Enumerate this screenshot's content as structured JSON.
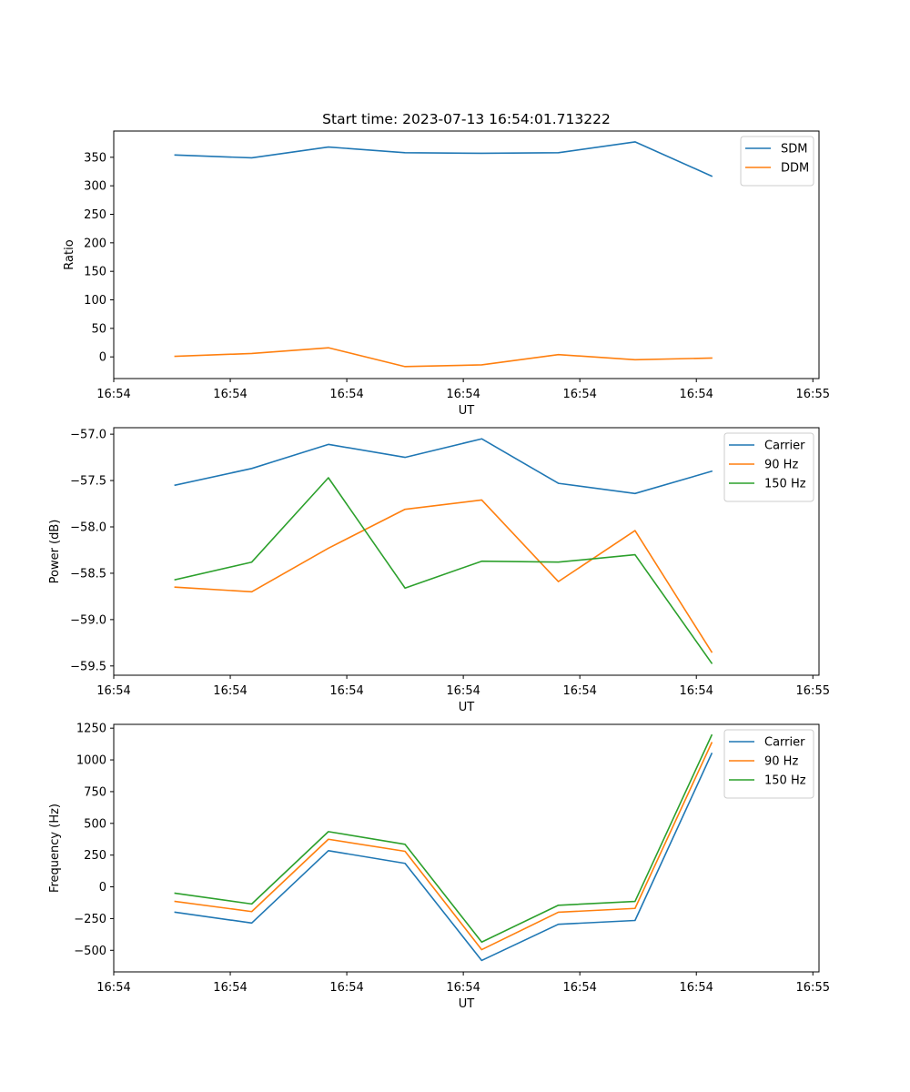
{
  "figure_title": "Start time: 2023-07-13 16:54:01.713222",
  "colors": {
    "c0": "#1f77b4",
    "c1": "#ff7f0e",
    "c2": "#2ca02c"
  },
  "chart_data": [
    {
      "type": "line",
      "title": "Start time: 2023-07-13 16:54:01.713222",
      "xlabel": "UT",
      "ylabel": "Ratio",
      "x": [
        1,
        2,
        3,
        4,
        5,
        6,
        7,
        8
      ],
      "xlim": [
        0.2,
        9.4
      ],
      "xticks": [
        0.2,
        1.72,
        3.24,
        4.76,
        6.28,
        7.8,
        9.32
      ],
      "xticklabels": [
        "16:54",
        "16:54",
        "16:54",
        "16:54",
        "16:54",
        "16:54",
        "16:55"
      ],
      "ylim": [
        -38,
        396
      ],
      "yticks": [
        0,
        50,
        100,
        150,
        200,
        250,
        300,
        350
      ],
      "yticklabels": [
        "0",
        "50",
        "100",
        "150",
        "200",
        "250",
        "300",
        "350"
      ],
      "legend_loc": "upper right",
      "series": [
        {
          "name": "SDM",
          "color": "#1f77b4",
          "values": [
            354,
            349,
            368,
            358,
            357,
            358,
            377,
            317
          ]
        },
        {
          "name": "DDM",
          "color": "#ff7f0e",
          "values": [
            1,
            6,
            16,
            -17,
            -14,
            4,
            -5,
            -2
          ]
        }
      ]
    },
    {
      "type": "line",
      "title": "",
      "xlabel": "UT",
      "ylabel": "Power (dB)",
      "x": [
        1,
        2,
        3,
        4,
        5,
        6,
        7,
        8
      ],
      "xlim": [
        0.2,
        9.4
      ],
      "xticks": [
        0.2,
        1.72,
        3.24,
        4.76,
        6.28,
        7.8,
        9.32
      ],
      "xticklabels": [
        "16:54",
        "16:54",
        "16:54",
        "16:54",
        "16:54",
        "16:54",
        "16:55"
      ],
      "ylim": [
        -59.6,
        -56.93
      ],
      "yticks": [
        -59.5,
        -59.0,
        -58.5,
        -58.0,
        -57.5,
        -57.0
      ],
      "yticklabels": [
        "−59.5",
        "−59.0",
        "−58.5",
        "−58.0",
        "−57.5",
        "−57.0"
      ],
      "legend_loc": "upper right",
      "series": [
        {
          "name": "Carrier",
          "color": "#1f77b4",
          "values": [
            -57.55,
            -57.37,
            -57.11,
            -57.25,
            -57.05,
            -57.53,
            -57.64,
            -57.4
          ]
        },
        {
          "name": "90 Hz",
          "color": "#ff7f0e",
          "values": [
            -58.65,
            -58.7,
            -58.23,
            -57.81,
            -57.71,
            -58.59,
            -58.04,
            -59.35
          ]
        },
        {
          "name": "150 Hz",
          "color": "#2ca02c",
          "values": [
            -58.57,
            -58.38,
            -57.47,
            -58.66,
            -58.37,
            -58.38,
            -58.3,
            -59.47
          ]
        }
      ]
    },
    {
      "type": "line",
      "title": "",
      "xlabel": "UT",
      "ylabel": "Frequency (Hz)",
      "x": [
        1,
        2,
        3,
        4,
        5,
        6,
        7,
        8
      ],
      "xlim": [
        0.2,
        9.4
      ],
      "xticks": [
        0.2,
        1.72,
        3.24,
        4.76,
        6.28,
        7.8,
        9.32
      ],
      "xticklabels": [
        "16:54",
        "16:54",
        "16:54",
        "16:54",
        "16:54",
        "16:54",
        "16:55"
      ],
      "ylim": [
        -670,
        1280
      ],
      "yticks": [
        -500,
        -250,
        0,
        250,
        500,
        750,
        1000,
        1250
      ],
      "yticklabels": [
        "−500",
        "−250",
        "0",
        "250",
        "500",
        "750",
        "1000",
        "1250"
      ],
      "legend_loc": "upper right",
      "series": [
        {
          "name": "Carrier",
          "color": "#1f77b4",
          "values": [
            -200,
            -285,
            285,
            185,
            -580,
            -295,
            -265,
            1050
          ]
        },
        {
          "name": "90 Hz",
          "color": "#ff7f0e",
          "values": [
            -115,
            -195,
            375,
            280,
            -495,
            -200,
            -170,
            1135
          ]
        },
        {
          "name": "150 Hz",
          "color": "#2ca02c",
          "values": [
            -50,
            -135,
            435,
            335,
            -435,
            -145,
            -115,
            1195
          ]
        }
      ]
    }
  ]
}
